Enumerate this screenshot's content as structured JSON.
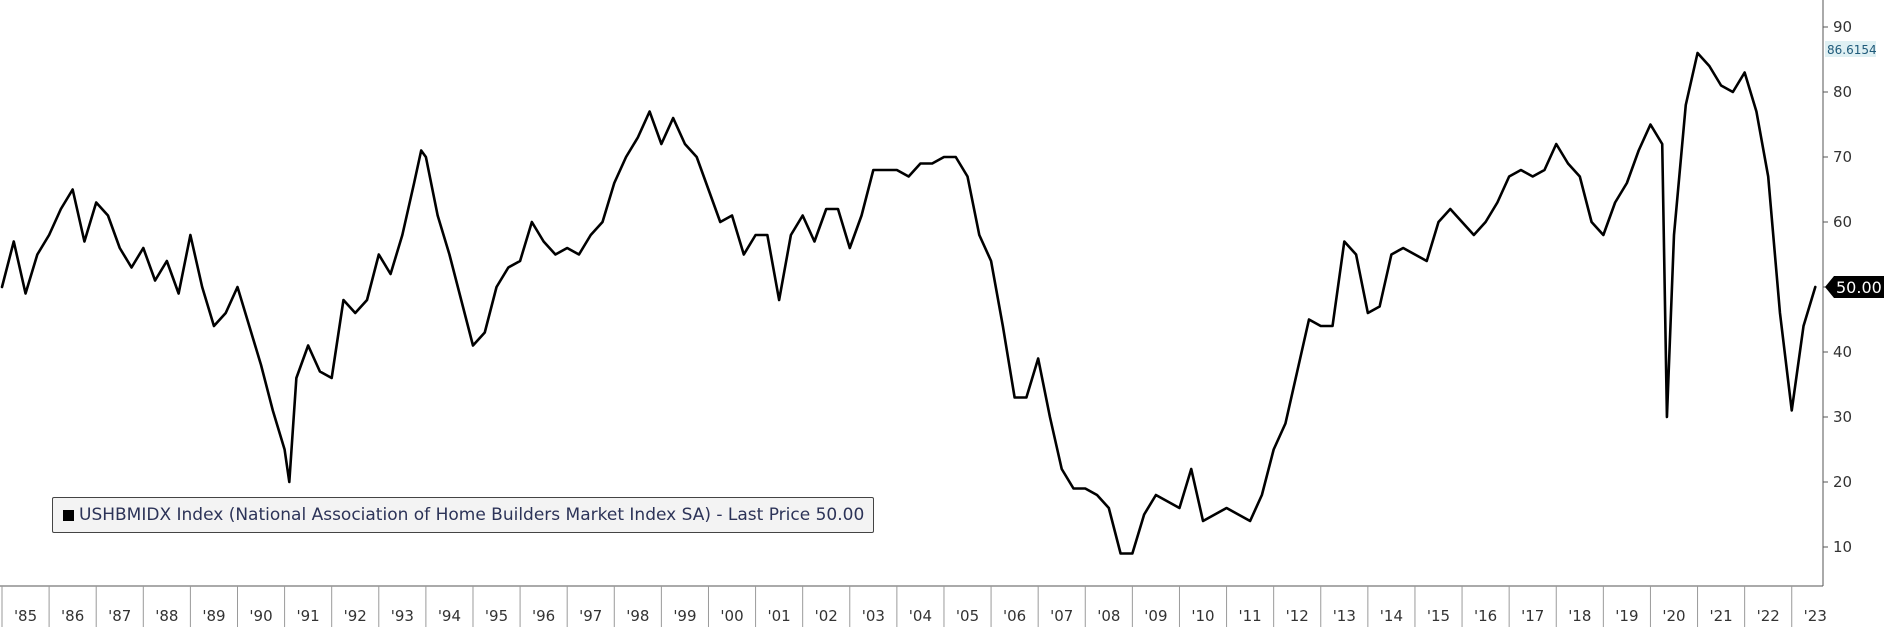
{
  "chart_data": {
    "type": "line",
    "series": [
      {
        "name": "USHBMIDX Index (National Association of Home Builders Market Index SA) - Last Price 50.00",
        "color": "#000000",
        "points": [
          [
            1985.0,
            50
          ],
          [
            1985.25,
            57
          ],
          [
            1985.5,
            49
          ],
          [
            1985.75,
            55
          ],
          [
            1986.0,
            58
          ],
          [
            1986.25,
            62
          ],
          [
            1986.5,
            65
          ],
          [
            1986.75,
            57
          ],
          [
            1987.0,
            63
          ],
          [
            1987.25,
            61
          ],
          [
            1987.5,
            56
          ],
          [
            1987.75,
            53
          ],
          [
            1988.0,
            56
          ],
          [
            1988.25,
            51
          ],
          [
            1988.5,
            54
          ],
          [
            1988.75,
            49
          ],
          [
            1989.0,
            58
          ],
          [
            1989.25,
            50
          ],
          [
            1989.5,
            44
          ],
          [
            1989.75,
            46
          ],
          [
            1990.0,
            50
          ],
          [
            1990.25,
            44
          ],
          [
            1990.5,
            38
          ],
          [
            1990.75,
            31
          ],
          [
            1991.0,
            25
          ],
          [
            1991.1,
            20
          ],
          [
            1991.25,
            36
          ],
          [
            1991.5,
            41
          ],
          [
            1991.75,
            37
          ],
          [
            1992.0,
            36
          ],
          [
            1992.25,
            48
          ],
          [
            1992.5,
            46
          ],
          [
            1992.75,
            48
          ],
          [
            1993.0,
            55
          ],
          [
            1993.25,
            52
          ],
          [
            1993.5,
            58
          ],
          [
            1993.75,
            66
          ],
          [
            1993.9,
            71
          ],
          [
            1994.0,
            70
          ],
          [
            1994.25,
            61
          ],
          [
            1994.5,
            55
          ],
          [
            1994.75,
            48
          ],
          [
            1995.0,
            41
          ],
          [
            1995.25,
            43
          ],
          [
            1995.5,
            50
          ],
          [
            1995.75,
            53
          ],
          [
            1996.0,
            54
          ],
          [
            1996.25,
            60
          ],
          [
            1996.5,
            57
          ],
          [
            1996.75,
            55
          ],
          [
            1997.0,
            56
          ],
          [
            1997.25,
            55
          ],
          [
            1997.5,
            58
          ],
          [
            1997.75,
            60
          ],
          [
            1998.0,
            66
          ],
          [
            1998.25,
            70
          ],
          [
            1998.5,
            73
          ],
          [
            1998.75,
            77
          ],
          [
            1999.0,
            72
          ],
          [
            1999.25,
            76
          ],
          [
            1999.5,
            72
          ],
          [
            1999.75,
            70
          ],
          [
            2000.0,
            65
          ],
          [
            2000.25,
            60
          ],
          [
            2000.5,
            61
          ],
          [
            2000.75,
            55
          ],
          [
            2001.0,
            58
          ],
          [
            2001.25,
            58
          ],
          [
            2001.5,
            48
          ],
          [
            2001.75,
            58
          ],
          [
            2002.0,
            61
          ],
          [
            2002.25,
            57
          ],
          [
            2002.5,
            62
          ],
          [
            2002.75,
            62
          ],
          [
            2003.0,
            56
          ],
          [
            2003.25,
            61
          ],
          [
            2003.5,
            68
          ],
          [
            2003.75,
            68
          ],
          [
            2004.0,
            68
          ],
          [
            2004.25,
            67
          ],
          [
            2004.5,
            69
          ],
          [
            2004.75,
            69
          ],
          [
            2005.0,
            70
          ],
          [
            2005.25,
            70
          ],
          [
            2005.5,
            67
          ],
          [
            2005.75,
            58
          ],
          [
            2006.0,
            54
          ],
          [
            2006.25,
            44
          ],
          [
            2006.5,
            33
          ],
          [
            2006.75,
            33
          ],
          [
            2007.0,
            39
          ],
          [
            2007.25,
            30
          ],
          [
            2007.5,
            22
          ],
          [
            2007.75,
            19
          ],
          [
            2008.0,
            19
          ],
          [
            2008.25,
            18
          ],
          [
            2008.5,
            16
          ],
          [
            2008.75,
            9
          ],
          [
            2009.0,
            9
          ],
          [
            2009.25,
            15
          ],
          [
            2009.5,
            18
          ],
          [
            2009.75,
            17
          ],
          [
            2010.0,
            16
          ],
          [
            2010.25,
            22
          ],
          [
            2010.5,
            14
          ],
          [
            2010.75,
            15
          ],
          [
            2011.0,
            16
          ],
          [
            2011.25,
            15
          ],
          [
            2011.5,
            14
          ],
          [
            2011.75,
            18
          ],
          [
            2012.0,
            25
          ],
          [
            2012.25,
            29
          ],
          [
            2012.5,
            37
          ],
          [
            2012.75,
            45
          ],
          [
            2013.0,
            44
          ],
          [
            2013.25,
            44
          ],
          [
            2013.5,
            57
          ],
          [
            2013.75,
            55
          ],
          [
            2014.0,
            46
          ],
          [
            2014.25,
            47
          ],
          [
            2014.5,
            55
          ],
          [
            2014.75,
            56
          ],
          [
            2015.0,
            55
          ],
          [
            2015.25,
            54
          ],
          [
            2015.5,
            60
          ],
          [
            2015.75,
            62
          ],
          [
            2016.0,
            60
          ],
          [
            2016.25,
            58
          ],
          [
            2016.5,
            60
          ],
          [
            2016.75,
            63
          ],
          [
            2017.0,
            67
          ],
          [
            2017.25,
            68
          ],
          [
            2017.5,
            67
          ],
          [
            2017.75,
            68
          ],
          [
            2018.0,
            72
          ],
          [
            2018.25,
            69
          ],
          [
            2018.5,
            67
          ],
          [
            2018.75,
            60
          ],
          [
            2019.0,
            58
          ],
          [
            2019.25,
            63
          ],
          [
            2019.5,
            66
          ],
          [
            2019.75,
            71
          ],
          [
            2020.0,
            75
          ],
          [
            2020.25,
            72
          ],
          [
            2020.35,
            30
          ],
          [
            2020.5,
            58
          ],
          [
            2020.75,
            78
          ],
          [
            2021.0,
            86
          ],
          [
            2021.25,
            84
          ],
          [
            2021.5,
            81
          ],
          [
            2021.75,
            80
          ],
          [
            2022.0,
            83
          ],
          [
            2022.25,
            77
          ],
          [
            2022.5,
            67
          ],
          [
            2022.75,
            46
          ],
          [
            2023.0,
            31
          ],
          [
            2023.25,
            44
          ],
          [
            2023.5,
            50
          ]
        ]
      }
    ],
    "x_ticks": [
      "'85",
      "'86",
      "'87",
      "'88",
      "'89",
      "'90",
      "'91",
      "'92",
      "'93",
      "'94",
      "'95",
      "'96",
      "'97",
      "'98",
      "'99",
      "'00",
      "'01",
      "'02",
      "'03",
      "'04",
      "'05",
      "'06",
      "'07",
      "'08",
      "'09",
      "'10",
      "'11",
      "'12",
      "'13",
      "'14",
      "'15",
      "'16",
      "'17",
      "'18",
      "'19",
      "'20",
      "'21",
      "'22",
      "'23"
    ],
    "y_ticks": [
      10,
      20,
      30,
      40,
      50,
      60,
      70,
      80,
      90
    ],
    "xlim": [
      1985.0,
      2023.6
    ],
    "ylim": [
      5,
      93
    ],
    "grid": false,
    "axis_position": "right",
    "last_price_label": "50.00",
    "last_price_value": 50,
    "max_marker_label": "86.6154",
    "max_marker_value": 86.6154,
    "legend_placement": "bottom-left"
  },
  "legend": {
    "text": "USHBMIDX Index (National Association of Home Builders Market Index SA) - Last Price 50.00"
  },
  "colors": {
    "line": "#000000",
    "max_marker_text": "#1f5a7a",
    "max_marker_bg": "#dff0f3"
  }
}
